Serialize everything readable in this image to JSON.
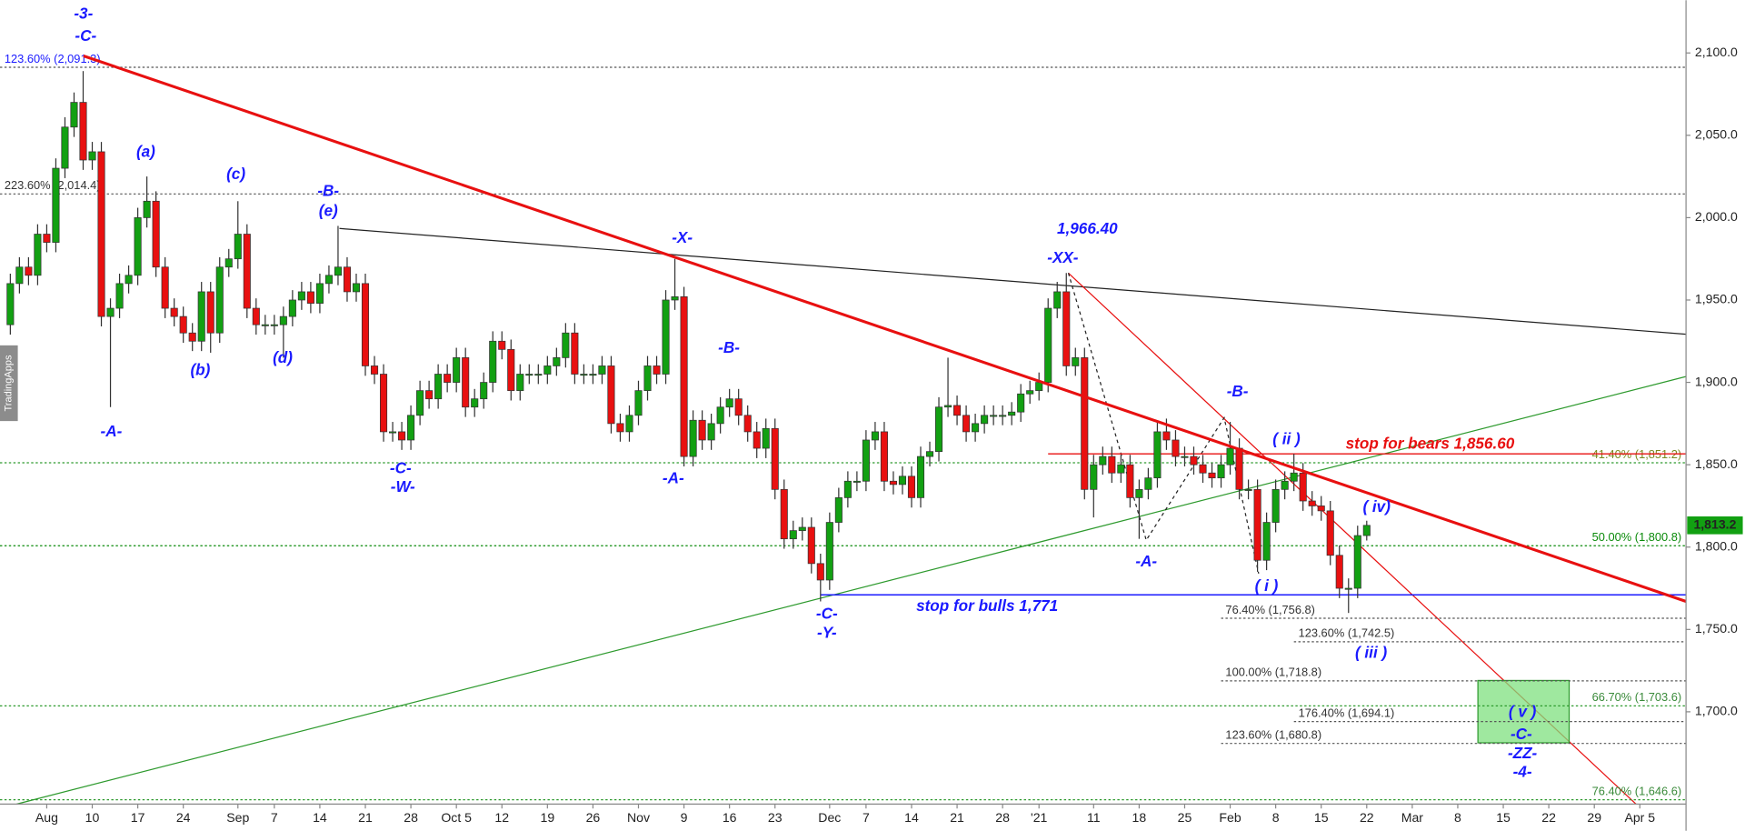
{
  "chart_data": {
    "type": "candlestick",
    "watermark": "TradingApps",
    "categories": [
      "Jul 28",
      "Jul 29",
      "Jul 30",
      "Jul 31",
      "Aug 3",
      "Aug 4",
      "Aug 5",
      "Aug 6",
      "Aug 7",
      "Aug 10",
      "Aug 11",
      "Aug 12",
      "Aug 13",
      "Aug 14",
      "Aug 17",
      "Aug 18",
      "Aug 19",
      "Aug 20",
      "Aug 21",
      "Aug 24",
      "Aug 25",
      "Aug 26",
      "Aug 27",
      "Aug 28",
      "Aug 31",
      "Sep 1",
      "Sep 2",
      "Sep 3",
      "Sep 4",
      "Sep 7",
      "Sep 8",
      "Sep 9",
      "Sep 10",
      "Sep 11",
      "Sep 14",
      "Sep 15",
      "Sep 16",
      "Sep 17",
      "Sep 18",
      "Sep 21",
      "Sep 22",
      "Sep 23",
      "Sep 24",
      "Sep 25",
      "Sep 28",
      "Sep 29",
      "Sep 30",
      "Oct 1",
      "Oct 2",
      "Oct 5",
      "Oct 6",
      "Oct 7",
      "Oct 8",
      "Oct 9",
      "Oct 12",
      "Oct 13",
      "Oct 14",
      "Oct 15",
      "Oct 16",
      "Oct 19",
      "Oct 20",
      "Oct 21",
      "Oct 22",
      "Oct 23",
      "Oct 26",
      "Oct 27",
      "Oct 28",
      "Oct 29",
      "Oct 30",
      "Nov 2",
      "Nov 3",
      "Nov 4",
      "Nov 5",
      "Nov 6",
      "Nov 9",
      "Nov 10",
      "Nov 11",
      "Nov 12",
      "Nov 13",
      "Nov 16",
      "Nov 17",
      "Nov 18",
      "Nov 19",
      "Nov 20",
      "Nov 23",
      "Nov 24",
      "Nov 25",
      "Nov 26",
      "Nov 27",
      "Nov 30",
      "Dec 1",
      "Dec 2",
      "Dec 3",
      "Dec 4",
      "Dec 7",
      "Dec 8",
      "Dec 9",
      "Dec 10",
      "Dec 11",
      "Dec 14",
      "Dec 15",
      "Dec 16",
      "Dec 17",
      "Dec 18",
      "Dec 21",
      "Dec 22",
      "Dec 23",
      "Dec 24",
      "Dec 25",
      "Dec 28",
      "Dec 29",
      "Dec 30",
      "Dec 31",
      "Jan 1",
      "Jan 4",
      "Jan 5",
      "Jan 6",
      "Jan 7",
      "Jan 8",
      "Jan 11",
      "Jan 12",
      "Jan 13",
      "Jan 14",
      "Jan 15",
      "Jan 18",
      "Jan 19",
      "Jan 20",
      "Jan 21",
      "Jan 22",
      "Jan 25",
      "Jan 26",
      "Jan 27",
      "Jan 28",
      "Jan 29",
      "Feb 1",
      "Feb 2",
      "Feb 3",
      "Feb 4",
      "Feb 5",
      "Feb 8",
      "Feb 9",
      "Feb 10",
      "Feb 11",
      "Feb 12",
      "Feb 15",
      "Feb 16",
      "Feb 17",
      "Feb 18",
      "Feb 19",
      "Feb 22",
      "Feb 23",
      "Feb 24",
      "Feb 25",
      "Feb 26",
      "Mar 1",
      "Mar 2",
      "Mar 3",
      "Mar 4",
      "Mar 5",
      "Mar 8",
      "Mar 9",
      "Mar 10",
      "Mar 11",
      "Mar 12",
      "Mar 15",
      "Mar 16",
      "Mar 17",
      "Mar 18",
      "Mar 19",
      "Mar 22",
      "Mar 23",
      "Mar 24",
      "Mar 25",
      "Mar 26",
      "Mar 29",
      "Mar 30",
      "Mar 31",
      "Apr 1",
      "Apr 2",
      "Apr 5",
      "Apr 6",
      "Apr 7",
      "Apr 8",
      "Apr 9"
    ],
    "open": [
      1935,
      1960,
      1970,
      1965,
      1990,
      1985,
      2030,
      2055,
      2070,
      2035,
      2040,
      1940,
      1945,
      1960,
      1965,
      2000,
      2010,
      1970,
      1945,
      1940,
      1930,
      1925,
      1955,
      1930,
      1970,
      1975,
      1990,
      1945,
      1935,
      1935,
      1935,
      1940,
      1950,
      1955,
      1948,
      1960,
      1965,
      1970,
      1955,
      1960,
      1910,
      1905,
      1870,
      1870,
      1865,
      1880,
      1895,
      1890,
      1905,
      1900,
      1915,
      1885,
      1890,
      1900,
      1925,
      1920,
      1895,
      1905,
      1905,
      1905,
      1910,
      1915,
      1930,
      1905,
      1905,
      1905,
      1910,
      1875,
      1870,
      1880,
      1895,
      1910,
      1905,
      1950,
      1952,
      1855,
      1877,
      1865,
      1875,
      1885,
      1890,
      1880,
      1870,
      1860,
      1872,
      1835,
      1805,
      1810,
      1812,
      1790,
      1780,
      1815,
      1830,
      1840,
      1840,
      1865,
      1870,
      1840,
      1838,
      1843,
      1830,
      1855,
      1858,
      1885,
      1886,
      1880,
      1870,
      1875,
      1880,
      1880,
      1880,
      1882,
      1893,
      1895,
      1900,
      1945,
      1955,
      1910,
      1915,
      1835,
      1850,
      1855,
      1845,
      1850,
      1830,
      1835,
      1842,
      1870,
      1865,
      1855,
      1855,
      1850,
      1845,
      1842,
      1850,
      1860,
      1835,
      1835,
      1792,
      1815,
      1835,
      1840,
      1845,
      1828,
      1825,
      1822,
      1795,
      1775,
      1775,
      1807,
      null,
      null,
      null,
      null,
      null,
      null,
      null,
      null,
      null,
      null,
      null,
      null,
      null,
      null,
      null,
      null,
      null,
      null,
      null,
      null,
      null,
      null,
      null,
      null,
      null,
      null,
      null,
      null,
      null,
      null,
      null,
      null,
      null,
      null
    ],
    "high": [
      1966,
      1976,
      1976,
      1996,
      1996,
      2036,
      2061,
      2076,
      2089,
      2046,
      2046,
      1951,
      1966,
      1971,
      2006,
      2025,
      2016,
      1976,
      1951,
      1946,
      1936,
      1961,
      1961,
      1976,
      1981,
      2010,
      1996,
      1951,
      1941,
      1941,
      1946,
      1956,
      1961,
      1961,
      1966,
      1971,
      1995,
      1976,
      1966,
      1966,
      1916,
      1911,
      1876,
      1876,
      1886,
      1901,
      1901,
      1911,
      1911,
      1921,
      1921,
      1896,
      1906,
      1931,
      1931,
      1926,
      1911,
      1911,
      1911,
      1916,
      1921,
      1936,
      1936,
      1911,
      1911,
      1916,
      1916,
      1881,
      1886,
      1901,
      1916,
      1916,
      1956,
      1975,
      1958,
      1883,
      1883,
      1881,
      1891,
      1896,
      1896,
      1886,
      1876,
      1878,
      1878,
      1841,
      1816,
      1818,
      1818,
      1796,
      1821,
      1836,
      1846,
      1846,
      1871,
      1876,
      1876,
      1846,
      1849,
      1849,
      1861,
      1864,
      1891,
      1915,
      1892,
      1886,
      1881,
      1886,
      1886,
      1886,
      1888,
      1899,
      1901,
      1906,
      1951,
      1961,
      1966.4,
      1921,
      1921,
      1856,
      1861,
      1861,
      1856,
      1856,
      1841,
      1848,
      1876,
      1878,
      1871,
      1861,
      1861,
      1856,
      1851,
      1856,
      1876,
      1866,
      1841,
      1841,
      1821,
      1841,
      1846,
      1856.6,
      1851,
      1834,
      1831,
      1828,
      1801,
      1781,
      1813,
      1816,
      null,
      null,
      null,
      null,
      null,
      null,
      null,
      null,
      null,
      null,
      null,
      null,
      null,
      null,
      null,
      null,
      null,
      null,
      null,
      null,
      null,
      null,
      null,
      null,
      null,
      null,
      null,
      null,
      null,
      null,
      null,
      null,
      null,
      null
    ],
    "low": [
      1929,
      1954,
      1959,
      1959,
      1979,
      1979,
      2024,
      2049,
      2029,
      2029,
      1934,
      1885,
      1939,
      1954,
      1959,
      1994,
      1964,
      1939,
      1934,
      1924,
      1919,
      1919,
      1918,
      1924,
      1964,
      1969,
      1939,
      1929,
      1929,
      1929,
      1915,
      1934,
      1944,
      1942,
      1942,
      1954,
      1959,
      1949,
      1949,
      1904,
      1899,
      1864,
      1864,
      1859,
      1859,
      1874,
      1884,
      1884,
      1894,
      1894,
      1879,
      1879,
      1884,
      1894,
      1914,
      1889,
      1889,
      1899,
      1899,
      1899,
      1904,
      1909,
      1899,
      1899,
      1899,
      1899,
      1869,
      1864,
      1864,
      1874,
      1889,
      1899,
      1899,
      1944,
      1849,
      1849,
      1859,
      1859,
      1869,
      1879,
      1874,
      1864,
      1854,
      1854,
      1829,
      1799,
      1799,
      1804,
      1784,
      1767,
      1774,
      1809,
      1824,
      1834,
      1834,
      1859,
      1834,
      1832,
      1832,
      1824,
      1824,
      1849,
      1852,
      1879,
      1874,
      1864,
      1864,
      1869,
      1874,
      1874,
      1874,
      1876,
      1887,
      1889,
      1894,
      1939,
      1904,
      1904,
      1829,
      1818,
      1844,
      1839,
      1839,
      1824,
      1805,
      1829,
      1836,
      1859,
      1849,
      1849,
      1844,
      1839,
      1836,
      1836,
      1844,
      1829,
      1829,
      1785,
      1786,
      1809,
      1829,
      1834,
      1822,
      1819,
      1816,
      1789,
      1769,
      1760,
      1769,
      1804,
      null,
      null,
      null,
      null,
      null,
      null,
      null,
      null,
      null,
      null,
      null,
      null,
      null,
      null,
      null,
      null,
      null,
      null,
      null,
      null,
      null,
      null,
      null,
      null,
      null,
      null,
      null,
      null,
      null,
      null,
      null,
      null,
      null,
      null
    ],
    "close": [
      1960,
      1970,
      1965,
      1990,
      1985,
      2030,
      2055,
      2070,
      2035,
      2040,
      1940,
      1945,
      1960,
      1965,
      2000,
      2010,
      1970,
      1945,
      1940,
      1930,
      1925,
      1955,
      1930,
      1970,
      1975,
      1990,
      1945,
      1935,
      1935,
      1935,
      1940,
      1950,
      1955,
      1948,
      1960,
      1965,
      1970,
      1955,
      1960,
      1910,
      1905,
      1870,
      1870,
      1865,
      1880,
      1895,
      1890,
      1905,
      1900,
      1915,
      1885,
      1890,
      1900,
      1925,
      1920,
      1895,
      1905,
      1905,
      1905,
      1910,
      1915,
      1930,
      1905,
      1905,
      1905,
      1910,
      1875,
      1870,
      1880,
      1895,
      1910,
      1905,
      1950,
      1952,
      1855,
      1877,
      1865,
      1875,
      1885,
      1890,
      1880,
      1870,
      1860,
      1872,
      1835,
      1805,
      1810,
      1812,
      1790,
      1780,
      1815,
      1830,
      1840,
      1840,
      1865,
      1870,
      1840,
      1838,
      1843,
      1830,
      1855,
      1858,
      1885,
      1886,
      1880,
      1870,
      1875,
      1880,
      1880,
      1880,
      1882,
      1893,
      1895,
      1900,
      1945,
      1955,
      1910,
      1915,
      1835,
      1850,
      1855,
      1845,
      1850,
      1830,
      1835,
      1842,
      1870,
      1865,
      1855,
      1855,
      1850,
      1845,
      1842,
      1850,
      1860,
      1835,
      1835,
      1792,
      1815,
      1835,
      1840,
      1845,
      1828,
      1825,
      1822,
      1795,
      1775,
      1775,
      1807,
      1813.2,
      null,
      null,
      null,
      null,
      null,
      null,
      null,
      null,
      null,
      null,
      null,
      null,
      null,
      null,
      null,
      null,
      null,
      null,
      null,
      null,
      null,
      null,
      null,
      null,
      null,
      null,
      null,
      null,
      null,
      null,
      null,
      null,
      null,
      null
    ],
    "up_color": "#12a012",
    "down_color": "#e81010",
    "last_label": "1,813.2",
    "ylim": [
      1644,
      2132
    ],
    "yticks": [
      {
        "value": 1700,
        "label": "1,700.0"
      },
      {
        "value": 1750,
        "label": "1,750.0"
      },
      {
        "value": 1800,
        "label": "1,800.0"
      },
      {
        "value": 1850,
        "label": "1,850.0"
      },
      {
        "value": 1900,
        "label": "1,900.0"
      },
      {
        "value": 1950,
        "label": "1,950.0"
      },
      {
        "value": 2000,
        "label": "2,000.0"
      },
      {
        "value": 2050,
        "label": "2,050.0"
      },
      {
        "value": 2100,
        "label": "2,100.0"
      }
    ],
    "xticks": [
      {
        "value": "Aug 3",
        "label": "Aug"
      },
      {
        "value": "Aug 10",
        "label": "10"
      },
      {
        "value": "Aug 17",
        "label": "17"
      },
      {
        "value": "Aug 24",
        "label": "24"
      },
      {
        "value": "Sep 1",
        "label": "Sep"
      },
      {
        "value": "Sep 7",
        "label": "7"
      },
      {
        "value": "Sep 14",
        "label": "14"
      },
      {
        "value": "Sep 21",
        "label": "21"
      },
      {
        "value": "Sep 28",
        "label": "28"
      },
      {
        "value": "Oct 5",
        "label": "Oct 5"
      },
      {
        "value": "Oct 12",
        "label": "12"
      },
      {
        "value": "Oct 19",
        "label": "19"
      },
      {
        "value": "Oct 26",
        "label": "26"
      },
      {
        "value": "Nov 2",
        "label": "Nov"
      },
      {
        "value": "Nov 9",
        "label": "9"
      },
      {
        "value": "Nov 16",
        "label": "16"
      },
      {
        "value": "Nov 23",
        "label": "23"
      },
      {
        "value": "Dec 1",
        "label": "Dec"
      },
      {
        "value": "Dec 7",
        "label": "7"
      },
      {
        "value": "Dec 14",
        "label": "14"
      },
      {
        "value": "Dec 21",
        "label": "21"
      },
      {
        "value": "Dec 28",
        "label": "28"
      },
      {
        "value": "Jan 1",
        "label": "'21"
      },
      {
        "value": "Jan 11",
        "label": "11"
      },
      {
        "value": "Jan 18",
        "label": "18"
      },
      {
        "value": "Jan 25",
        "label": "25"
      },
      {
        "value": "Feb 1",
        "label": "Feb"
      },
      {
        "value": "Feb 8",
        "label": "8"
      },
      {
        "value": "Feb 15",
        "label": "15"
      },
      {
        "value": "Feb 22",
        "label": "22"
      },
      {
        "value": "Mar 1",
        "label": "Mar"
      },
      {
        "value": "Mar 8",
        "label": "8"
      },
      {
        "value": "Mar 15",
        "label": "15"
      },
      {
        "value": "Mar 22",
        "label": "22"
      },
      {
        "value": "Mar 29",
        "label": "29"
      },
      {
        "value": "Apr 5",
        "label": "Apr 5"
      }
    ],
    "levels": [
      {
        "label": "123.60% (2,091.3)",
        "value": 2091.3,
        "color": "#1a1aff",
        "line_color": "#555555",
        "side": "left"
      },
      {
        "label": "223.60% (2,014.4)",
        "value": 2014.4,
        "color": "#333333",
        "line_color": "#555555",
        "side": "left"
      },
      {
        "label": "41.40% (1,851.2)",
        "value": 1851.2,
        "color": "#7a8a20",
        "line_color": "#2e9a2e",
        "side": "right"
      },
      {
        "label": "50.00% (1,800.8)",
        "value": 1800.8,
        "color": "#0a8a0a",
        "line_color": "#0a8a0a",
        "side": "right"
      },
      {
        "label": "66.70% (1,703.6)",
        "value": 1703.6,
        "color": "#3a8a3a",
        "line_color": "#2e9a2e",
        "side": "right"
      },
      {
        "label": "76.40% (1,646.6)",
        "value": 1646.6,
        "color": "#3a8a3a",
        "line_color": "#2e9a2e",
        "side": "right"
      },
      {
        "label": "76.40% (1,756.8)",
        "value": 1756.8,
        "color": "#333333",
        "line_color": "#555555",
        "from": "Jan 29"
      },
      {
        "label": "123.60% (1,742.5)",
        "value": 1742.5,
        "color": "#333333",
        "line_color": "#555555",
        "from": "Feb 10"
      },
      {
        "label": "100.00% (1,718.8)",
        "value": 1718.8,
        "color": "#333333",
        "line_color": "#555555",
        "from": "Jan 29"
      },
      {
        "label": "176.40% (1,694.1)",
        "value": 1694.1,
        "color": "#333333",
        "line_color": "#555555",
        "from": "Feb 10"
      },
      {
        "label": "123.60% (1,680.8)",
        "value": 1680.8,
        "color": "#333333",
        "line_color": "#555555",
        "from": "Jan 29"
      }
    ],
    "stops": [
      {
        "label": "stop for bulls 1,771",
        "value": 1771,
        "color": "#1a1aff",
        "from": "Nov 30"
      },
      {
        "label": "stop for bears 1,856.60",
        "value": 1856.6,
        "color": "#e81010",
        "from": "Jan 4"
      }
    ],
    "annotation_color": "#1a1aff",
    "annotations": [
      "-3-",
      "-C-",
      "(a)",
      "(c)",
      "-B-",
      "(e)",
      "(b)",
      "(d)",
      "-A-",
      "-C-",
      "-W-",
      "-X-",
      "-B-",
      "-A-",
      "1,966.40",
      "-XX-",
      "-C-",
      "-Y-",
      "-B-",
      "( ii )",
      "-A-",
      "( i )",
      "( iv)",
      "( iii )",
      "( v )",
      "-C-",
      "-ZZ-",
      "-4-"
    ]
  }
}
